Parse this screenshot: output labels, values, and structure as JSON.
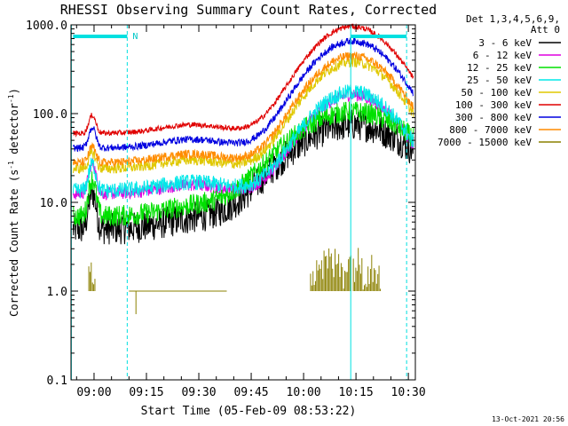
{
  "chart_data": {
    "type": "line",
    "title": "RHESSI Observing Summary Count Rates, Corrected",
    "xlabel": "Start Time (05-Feb-09 08:53:22)",
    "ylabel_main": "Corrected Count Rate (s",
    "ylabel_sup1": "-1",
    "ylabel_mid": " detector",
    "ylabel_sup2": "-1",
    "ylabel_end": ")",
    "y_scale": "log",
    "ylim": [
      0.1,
      1000
    ],
    "xlim_minutes": [
      53.4,
      152
    ],
    "y_ticks": [
      {
        "label": "1000.0",
        "value": 1000
      },
      {
        "label": "100.0",
        "value": 100
      },
      {
        "label": "10.0",
        "value": 10
      },
      {
        "label": "1.0",
        "value": 1
      },
      {
        "label": "0.1",
        "value": 0.1
      }
    ],
    "x_ticks": [
      {
        "label": "09:00",
        "minute": 60
      },
      {
        "label": "09:15",
        "minute": 75
      },
      {
        "label": "09:30",
        "minute": 90
      },
      {
        "label": "09:45",
        "minute": 105
      },
      {
        "label": "10:00",
        "minute": 120
      },
      {
        "label": "10:15",
        "minute": 135
      },
      {
        "label": "10:30",
        "minute": 150
      }
    ],
    "legend_header": [
      "Det 1,3,4,5,6,9,",
      "Att 0"
    ],
    "legend_position": "right",
    "series": [
      {
        "name": "3 - 6 keV",
        "color": "#000000",
        "base": 5,
        "peaks": [
          [
            59.5,
            1.3,
            2.6
          ],
          [
            134,
            20,
            15
          ]
        ],
        "noise": 0.18
      },
      {
        "name": "6 - 12 keV",
        "color": "#e000e0",
        "base": 12.5,
        "peaks": [
          [
            59.5,
            1.3,
            2.2
          ],
          [
            134,
            14,
            13
          ]
        ],
        "noise": 0.07
      },
      {
        "name": "12 - 25 keV",
        "color": "#00e000",
        "base": 7,
        "peaks": [
          [
            59.5,
            1.3,
            2.6
          ],
          [
            134,
            20,
            15
          ]
        ],
        "noise": 0.12
      },
      {
        "name": "25 - 50 keV",
        "color": "#00e8e8",
        "base": 13.5,
        "peaks": [
          [
            59.5,
            1.3,
            2.0
          ],
          [
            134,
            14,
            13
          ]
        ],
        "noise": 0.09
      },
      {
        "name": "50 - 100 keV",
        "color": "#e0c800",
        "base": 24,
        "peaks": [
          [
            59.5,
            1.3,
            1.5
          ],
          [
            134,
            14,
            16
          ]
        ],
        "noise": 0.06
      },
      {
        "name": "100 - 300 keV",
        "color": "#e00000",
        "base": 60,
        "peaks": [
          [
            59.5,
            1.3,
            1.6
          ],
          [
            134,
            14,
            16
          ]
        ],
        "noise": 0.03
      },
      {
        "name": "300 - 800 keV",
        "color": "#0000e0",
        "base": 41,
        "peaks": [
          [
            59.5,
            1.3,
            1.7
          ],
          [
            134,
            14,
            16
          ]
        ],
        "noise": 0.04
      },
      {
        "name": "800 - 7000 keV",
        "color": "#ff8c00",
        "base": 28,
        "peaks": [
          [
            59.5,
            1.3,
            1.5
          ],
          [
            134,
            14,
            16
          ]
        ],
        "noise": 0.05
      },
      {
        "name": "7000 - 15000 keV",
        "color": "#8b8000",
        "base": 1,
        "peaks": [],
        "noise": 0
      }
    ],
    "annotations": {
      "night_label": "N",
      "attenuator_vlines_minutes": [
        53.5,
        69.5,
        133.5,
        149.5
      ],
      "night_bars_minutes": [
        [
          54,
          69.5
        ],
        [
          133.5,
          149.5
        ]
      ]
    },
    "timestamp": "13-Oct-2021 20:56"
  }
}
